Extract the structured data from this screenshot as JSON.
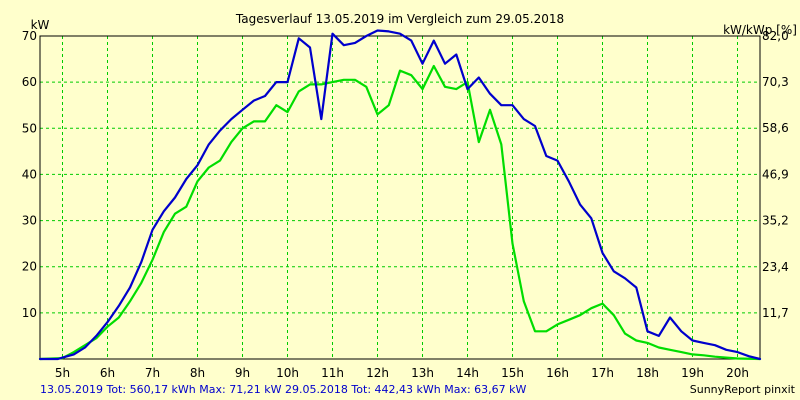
{
  "chart_data": {
    "type": "line",
    "title": "Tagesverlauf 13.05.2019 im Vergleich zum 29.05.2018",
    "ylabel_left": "kW",
    "ylabel_right": "kW/kWp [%]",
    "y_ticks_left": [
      "10",
      "20",
      "30",
      "40",
      "50",
      "60",
      "70"
    ],
    "y_ticks_right": [
      "11,7",
      "23,4",
      "35,2",
      "46,9",
      "58,6",
      "70,3",
      "82,0"
    ],
    "x_ticks": [
      "5h",
      "6h",
      "7h",
      "8h",
      "9h",
      "10h",
      "11h",
      "12h",
      "13h",
      "14h",
      "15h",
      "16h",
      "17h",
      "18h",
      "19h",
      "20h"
    ],
    "xlim": [
      4.5,
      20.5
    ],
    "ylim": [
      0,
      70
    ],
    "ylim_right": [
      0,
      82.0
    ],
    "grid": true,
    "series": [
      {
        "name": "13.05.2019",
        "color": "#0000CC",
        "points": [
          [
            4.5,
            0
          ],
          [
            4.9,
            0
          ],
          [
            5.0,
            0.3
          ],
          [
            5.25,
            1.0
          ],
          [
            5.5,
            2.5
          ],
          [
            5.75,
            5.0
          ],
          [
            6.0,
            8.0
          ],
          [
            6.25,
            11.5
          ],
          [
            6.5,
            15.5
          ],
          [
            6.75,
            21.0
          ],
          [
            7.0,
            28.0
          ],
          [
            7.25,
            32.0
          ],
          [
            7.5,
            35.0
          ],
          [
            7.75,
            39.0
          ],
          [
            8.0,
            42.0
          ],
          [
            8.25,
            46.5
          ],
          [
            8.5,
            49.5
          ],
          [
            8.75,
            52.0
          ],
          [
            9.0,
            54.0
          ],
          [
            9.25,
            56.0
          ],
          [
            9.5,
            57.0
          ],
          [
            9.75,
            60.0
          ],
          [
            10.0,
            60.0
          ],
          [
            10.25,
            69.5
          ],
          [
            10.5,
            67.5
          ],
          [
            10.75,
            52.0
          ],
          [
            11.0,
            70.5
          ],
          [
            11.25,
            68.0
          ],
          [
            11.5,
            68.5
          ],
          [
            11.75,
            70.0
          ],
          [
            12.0,
            71.2
          ],
          [
            12.25,
            71.0
          ],
          [
            12.5,
            70.5
          ],
          [
            12.75,
            69.0
          ],
          [
            13.0,
            64.0
          ],
          [
            13.25,
            69.0
          ],
          [
            13.5,
            64.0
          ],
          [
            13.75,
            66.0
          ],
          [
            14.0,
            58.5
          ],
          [
            14.25,
            61.0
          ],
          [
            14.5,
            57.5
          ],
          [
            14.75,
            55.0
          ],
          [
            15.0,
            55.0
          ],
          [
            15.25,
            52.0
          ],
          [
            15.5,
            50.5
          ],
          [
            15.75,
            44.0
          ],
          [
            16.0,
            43.0
          ],
          [
            16.25,
            38.5
          ],
          [
            16.5,
            33.5
          ],
          [
            16.75,
            30.5
          ],
          [
            17.0,
            23.0
          ],
          [
            17.25,
            19.0
          ],
          [
            17.5,
            17.5
          ],
          [
            17.75,
            15.5
          ],
          [
            18.0,
            6.0
          ],
          [
            18.25,
            5.0
          ],
          [
            18.5,
            9.0
          ],
          [
            18.75,
            6.0
          ],
          [
            19.0,
            4.0
          ],
          [
            19.25,
            3.5
          ],
          [
            19.5,
            3.0
          ],
          [
            19.75,
            2.0
          ],
          [
            20.0,
            1.5
          ],
          [
            20.25,
            0.6
          ],
          [
            20.5,
            0
          ]
        ]
      },
      {
        "name": "29.05.2018",
        "color": "#00DD00",
        "points": [
          [
            4.5,
            0
          ],
          [
            5.0,
            0.2
          ],
          [
            5.25,
            1.5
          ],
          [
            5.5,
            3.0
          ],
          [
            5.75,
            4.5
          ],
          [
            6.0,
            7.0
          ],
          [
            6.25,
            9.0
          ],
          [
            6.5,
            12.5
          ],
          [
            6.75,
            16.5
          ],
          [
            7.0,
            21.5
          ],
          [
            7.25,
            27.5
          ],
          [
            7.5,
            31.5
          ],
          [
            7.75,
            33.0
          ],
          [
            8.0,
            38.5
          ],
          [
            8.25,
            41.5
          ],
          [
            8.5,
            43.0
          ],
          [
            8.75,
            47.0
          ],
          [
            9.0,
            50.0
          ],
          [
            9.25,
            51.5
          ],
          [
            9.5,
            51.5
          ],
          [
            9.75,
            55.0
          ],
          [
            10.0,
            53.5
          ],
          [
            10.25,
            58.0
          ],
          [
            10.5,
            59.5
          ],
          [
            10.75,
            59.5
          ],
          [
            11.0,
            60.0
          ],
          [
            11.25,
            60.5
          ],
          [
            11.5,
            60.5
          ],
          [
            11.75,
            59.0
          ],
          [
            12.0,
            53.0
          ],
          [
            12.25,
            55.0
          ],
          [
            12.5,
            62.5
          ],
          [
            12.75,
            61.5
          ],
          [
            13.0,
            58.5
          ],
          [
            13.25,
            63.5
          ],
          [
            13.5,
            59.0
          ],
          [
            13.75,
            58.5
          ],
          [
            14.0,
            60.0
          ],
          [
            14.25,
            47.0
          ],
          [
            14.5,
            54.0
          ],
          [
            14.75,
            46.5
          ],
          [
            15.0,
            25.0
          ],
          [
            15.25,
            12.5
          ],
          [
            15.5,
            6.0
          ],
          [
            15.75,
            6.0
          ],
          [
            16.0,
            7.5
          ],
          [
            16.25,
            8.5
          ],
          [
            16.5,
            9.5
          ],
          [
            16.75,
            11.0
          ],
          [
            17.0,
            12.0
          ],
          [
            17.25,
            9.5
          ],
          [
            17.5,
            5.5
          ],
          [
            17.75,
            4.0
          ],
          [
            18.0,
            3.5
          ],
          [
            18.25,
            2.5
          ],
          [
            18.5,
            2.0
          ],
          [
            18.75,
            1.5
          ],
          [
            19.0,
            1.0
          ],
          [
            19.25,
            0.8
          ],
          [
            19.5,
            0.5
          ],
          [
            19.75,
            0.3
          ],
          [
            20.0,
            0.1
          ],
          [
            20.5,
            0
          ]
        ]
      }
    ]
  },
  "footer": {
    "summary": "13.05.2019 Tot: 560,17 kWh Max: 71,21 kW 29.05.2018 Tot: 442,43 kWh Max: 63,67 kW",
    "brand": "SunnyReport pinxit"
  }
}
